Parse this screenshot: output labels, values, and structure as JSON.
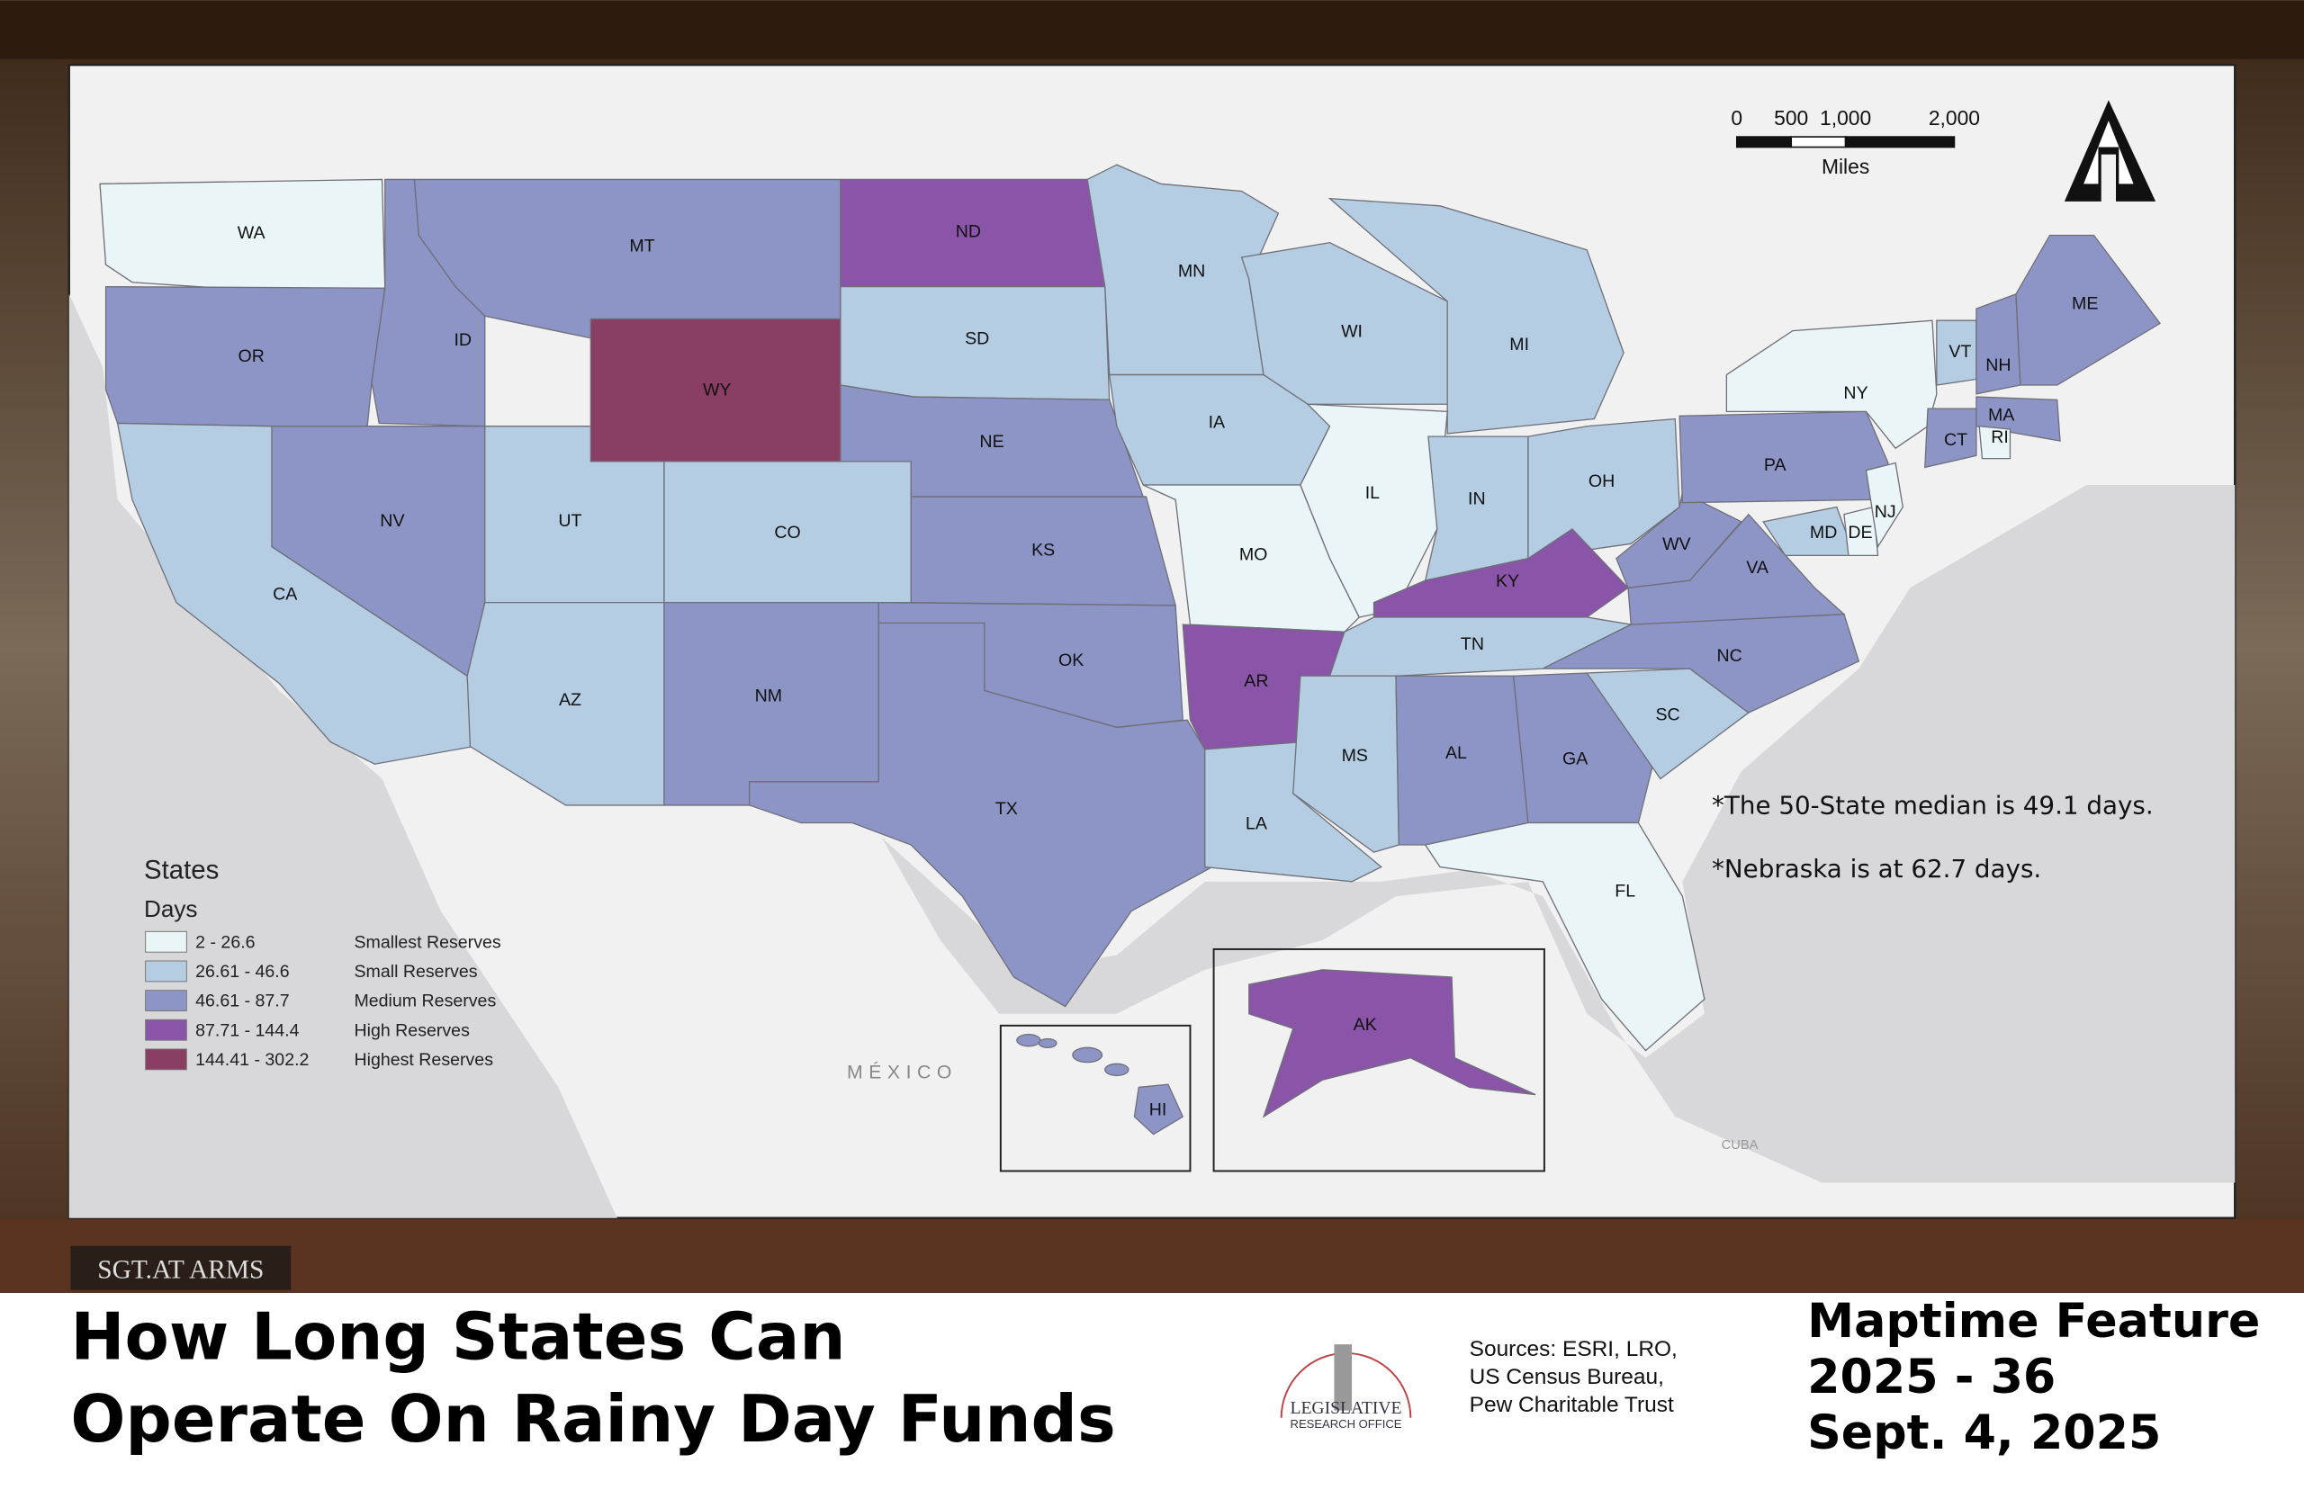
{
  "map": {
    "states": [
      {
        "label": "WA",
        "color": "#eaf5f7"
      },
      {
        "label": "OR",
        "color": "#8c95c6"
      },
      {
        "label": "CA",
        "color": "#b4cde2"
      },
      {
        "label": "ID",
        "color": "#8c95c6"
      },
      {
        "label": "NV",
        "color": "#8c95c6"
      },
      {
        "label": "MT",
        "color": "#8c95c6"
      },
      {
        "label": "WY",
        "color": "#8a3e63"
      },
      {
        "label": "UT",
        "color": "#b4cde2"
      },
      {
        "label": "AZ",
        "color": "#b4cde2"
      },
      {
        "label": "CO",
        "color": "#b4cde2"
      },
      {
        "label": "NM",
        "color": "#8c95c6"
      },
      {
        "label": "ND",
        "color": "#8a55a8"
      },
      {
        "label": "SD",
        "color": "#b4cde2"
      },
      {
        "label": "NE",
        "color": "#8c95c6"
      },
      {
        "label": "KS",
        "color": "#8c95c6"
      },
      {
        "label": "OK",
        "color": "#8c95c6"
      },
      {
        "label": "TX",
        "color": "#8c95c6"
      },
      {
        "label": "MN",
        "color": "#b4cde2"
      },
      {
        "label": "IA",
        "color": "#b4cde2"
      },
      {
        "label": "MO",
        "color": "#eaf5f7"
      },
      {
        "label": "AR",
        "color": "#8a55a8"
      },
      {
        "label": "LA",
        "color": "#b4cde2"
      },
      {
        "label": "WI",
        "color": "#b4cde2"
      },
      {
        "label": "MI",
        "color": "#b4cde2"
      },
      {
        "label": "IL",
        "color": "#eaf5f7"
      },
      {
        "label": "IN",
        "color": "#b4cde2"
      },
      {
        "label": "OH",
        "color": "#b4cde2"
      },
      {
        "label": "KY",
        "color": "#8a55a8"
      },
      {
        "label": "TN",
        "color": "#b4cde2"
      },
      {
        "label": "MS",
        "color": "#b4cde2"
      },
      {
        "label": "AL",
        "color": "#8c95c6"
      },
      {
        "label": "GA",
        "color": "#8c95c6"
      },
      {
        "label": "FL",
        "color": "#eaf5f7"
      },
      {
        "label": "SC",
        "color": "#b4cde2"
      },
      {
        "label": "NC",
        "color": "#8c95c6"
      },
      {
        "label": "VA",
        "color": "#8c95c6"
      },
      {
        "label": "WV",
        "color": "#8c95c6"
      },
      {
        "label": "PA",
        "color": "#8c95c6"
      },
      {
        "label": "NY",
        "color": "#eaf5f7"
      },
      {
        "label": "VT",
        "color": "#b4cde2"
      },
      {
        "label": "NH",
        "color": "#8c95c6"
      },
      {
        "label": "ME",
        "color": "#8c95c6"
      },
      {
        "label": "MA",
        "color": "#8c95c6"
      },
      {
        "label": "CT",
        "color": "#8c95c6"
      },
      {
        "label": "RI",
        "color": "#eaf5f7"
      },
      {
        "label": "MD",
        "color": "#b4cde2"
      },
      {
        "label": "DE",
        "color": "#eaf5f7"
      },
      {
        "label": "NJ",
        "color": "#eaf5f7"
      },
      {
        "label": "AK",
        "color": "#8a55a8"
      },
      {
        "label": "HI",
        "color": "#8c95c6"
      }
    ],
    "legend": {
      "title": "States",
      "subtitle": "Days",
      "classes": [
        {
          "range": "2 - 26.6",
          "label": "Smallest Reserves",
          "color": "#eaf5f7"
        },
        {
          "range": "26.61 - 46.6",
          "label": "Small Reserves",
          "color": "#b4cde2"
        },
        {
          "range": "46.61 - 87.7",
          "label": "Medium Reserves",
          "color": "#8c95c6"
        },
        {
          "range": "87.71 - 144.4",
          "label": "High Reserves",
          "color": "#8a55a8"
        },
        {
          "range": "144.41 - 302.2",
          "label": "Highest Reserves",
          "color": "#8a3e63"
        }
      ]
    },
    "notes": [
      "*The 50-State median is 49.1 days.",
      "*Nebraska is at 62.7 days."
    ],
    "scale": {
      "ticks": [
        0,
        500,
        {
          "value": 1000,
          "label": "1,000"
        },
        {
          "value": 2000,
          "label": "2,000"
        }
      ],
      "unit": "Miles"
    },
    "place_labels": [
      "MÉXICO",
      "CUBA"
    ]
  },
  "footer": {
    "title": [
      "How Long States Can",
      "Operate On Rainy Day Funds"
    ],
    "sources": [
      "Sources:  ESRI, LRO,",
      "US Census Bureau,",
      "Pew Charitable Trust"
    ],
    "feature": [
      "Maptime Feature",
      "2025 - 36",
      "Sept. 4, 2025"
    ],
    "logo": [
      "LEGISLATIVE",
      "RESEARCH OFFICE"
    ]
  },
  "background": {
    "sign": "SGT.AT ARMS"
  }
}
